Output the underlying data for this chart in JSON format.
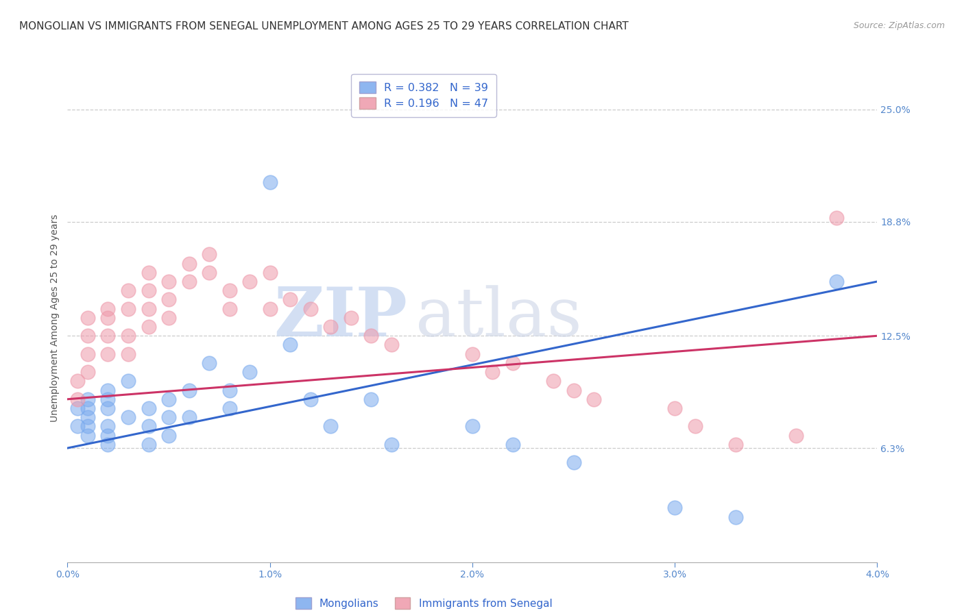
{
  "title": "MONGOLIAN VS IMMIGRANTS FROM SENEGAL UNEMPLOYMENT AMONG AGES 25 TO 29 YEARS CORRELATION CHART",
  "source": "Source: ZipAtlas.com",
  "ylabel": "Unemployment Among Ages 25 to 29 years",
  "xlim": [
    0.0,
    0.04
  ],
  "ylim": [
    0.0,
    0.27
  ],
  "xtick_labels": [
    "0.0%",
    "1.0%",
    "2.0%",
    "3.0%",
    "4.0%"
  ],
  "xtick_vals": [
    0.0,
    0.01,
    0.02,
    0.03,
    0.04
  ],
  "right_ytick_labels": [
    "25.0%",
    "18.8%",
    "12.5%",
    "6.3%"
  ],
  "right_ytick_vals": [
    0.25,
    0.188,
    0.125,
    0.063
  ],
  "grid_color": "#cccccc",
  "background_color": "#ffffff",
  "mongolian_color": "#7aaaee",
  "senegal_color": "#ee99aa",
  "mongolian_R": 0.382,
  "mongolian_N": 39,
  "senegal_R": 0.196,
  "senegal_N": 47,
  "legend_label_mongolian": "Mongolians",
  "legend_label_senegal": "Immigrants from Senegal",
  "watermark_zip": "ZIP",
  "watermark_atlas": "atlas",
  "title_fontsize": 11,
  "source_fontsize": 9,
  "axis_label_fontsize": 10,
  "tick_fontsize": 10,
  "mongolian_x": [
    0.0005,
    0.0005,
    0.001,
    0.001,
    0.001,
    0.001,
    0.001,
    0.002,
    0.002,
    0.002,
    0.002,
    0.002,
    0.002,
    0.003,
    0.003,
    0.004,
    0.004,
    0.004,
    0.005,
    0.005,
    0.005,
    0.006,
    0.006,
    0.007,
    0.008,
    0.008,
    0.009,
    0.01,
    0.011,
    0.012,
    0.013,
    0.015,
    0.016,
    0.02,
    0.022,
    0.025,
    0.03,
    0.033,
    0.038
  ],
  "mongolian_y": [
    0.085,
    0.075,
    0.09,
    0.085,
    0.08,
    0.075,
    0.07,
    0.095,
    0.09,
    0.085,
    0.075,
    0.07,
    0.065,
    0.1,
    0.08,
    0.085,
    0.075,
    0.065,
    0.09,
    0.08,
    0.07,
    0.095,
    0.08,
    0.11,
    0.095,
    0.085,
    0.105,
    0.21,
    0.12,
    0.09,
    0.075,
    0.09,
    0.065,
    0.075,
    0.065,
    0.055,
    0.03,
    0.025,
    0.155
  ],
  "senegal_x": [
    0.0005,
    0.0005,
    0.001,
    0.001,
    0.001,
    0.001,
    0.002,
    0.002,
    0.002,
    0.002,
    0.003,
    0.003,
    0.003,
    0.003,
    0.004,
    0.004,
    0.004,
    0.004,
    0.005,
    0.005,
    0.005,
    0.006,
    0.006,
    0.007,
    0.007,
    0.008,
    0.008,
    0.009,
    0.01,
    0.01,
    0.011,
    0.012,
    0.013,
    0.014,
    0.015,
    0.016,
    0.02,
    0.021,
    0.022,
    0.024,
    0.025,
    0.026,
    0.03,
    0.031,
    0.033,
    0.036,
    0.038
  ],
  "senegal_y": [
    0.1,
    0.09,
    0.135,
    0.125,
    0.115,
    0.105,
    0.14,
    0.135,
    0.125,
    0.115,
    0.15,
    0.14,
    0.125,
    0.115,
    0.16,
    0.15,
    0.14,
    0.13,
    0.155,
    0.145,
    0.135,
    0.165,
    0.155,
    0.17,
    0.16,
    0.15,
    0.14,
    0.155,
    0.16,
    0.14,
    0.145,
    0.14,
    0.13,
    0.135,
    0.125,
    0.12,
    0.115,
    0.105,
    0.11,
    0.1,
    0.095,
    0.09,
    0.085,
    0.075,
    0.065,
    0.07,
    0.19
  ],
  "mon_trend_x0": 0.0,
  "mon_trend_y0": 0.063,
  "mon_trend_x1": 0.04,
  "mon_trend_y1": 0.155,
  "sen_trend_x0": 0.0,
  "sen_trend_y0": 0.09,
  "sen_trend_x1": 0.04,
  "sen_trend_y1": 0.125
}
